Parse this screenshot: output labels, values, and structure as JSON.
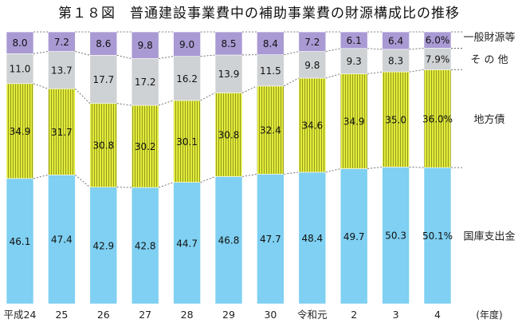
{
  "title": "第１８図　普通建設事業費中の補助事業費の財源構成比の推移",
  "chart_data": {
    "type": "bar",
    "stacked": true,
    "percent": true,
    "categories": [
      "平成24",
      "25",
      "26",
      "27",
      "28",
      "29",
      "30",
      "令和元",
      "2",
      "3",
      "4"
    ],
    "x_unit_label": "(年度)",
    "series": [
      {
        "name": "国庫支出金",
        "color": "#7fd0f2",
        "pattern": "none",
        "values": [
          46.1,
          47.4,
          42.9,
          42.8,
          44.7,
          46.8,
          47.7,
          48.4,
          49.7,
          50.3,
          50.1
        ],
        "labels": [
          "46.1",
          "47.4",
          "42.9",
          "42.8",
          "44.7",
          "46.8",
          "47.7",
          "48.4",
          "49.7",
          "50.3",
          "50.1%"
        ]
      },
      {
        "name": "地方債",
        "color": "#e4ea3a",
        "pattern": "vertical-lines",
        "values": [
          34.9,
          31.7,
          30.8,
          30.2,
          30.1,
          30.8,
          32.4,
          34.6,
          34.9,
          35.0,
          36.0
        ],
        "labels": [
          "34.9",
          "31.7",
          "30.8",
          "30.2",
          "30.1",
          "30.8",
          "32.4",
          "34.6",
          "34.9",
          "35.0",
          "36.0%"
        ]
      },
      {
        "name": "そ の 他",
        "color": "#cfd2d4",
        "pattern": "none",
        "values": [
          11.0,
          13.7,
          17.7,
          17.2,
          16.2,
          13.9,
          11.5,
          9.8,
          9.3,
          8.3,
          7.9
        ],
        "labels": [
          "11.0",
          "13.7",
          "17.7",
          "17.2",
          "16.2",
          "13.9",
          "11.5",
          "9.8",
          "9.3",
          "8.3",
          "7.9%"
        ]
      },
      {
        "name": "一般財源等",
        "color": "#a99ad4",
        "pattern": "none",
        "values": [
          8.0,
          7.2,
          8.6,
          9.8,
          9.0,
          8.5,
          8.4,
          7.2,
          6.1,
          6.4,
          6.0
        ],
        "labels": [
          "8.0",
          "7.2",
          "8.6",
          "9.8",
          "9.0",
          "8.5",
          "8.4",
          "7.2",
          "6.1",
          "6.4",
          "6.0%"
        ]
      }
    ],
    "ylim": [
      0,
      100
    ],
    "legend": "right, labels aligned with segments",
    "connector_lines": "dashed"
  }
}
